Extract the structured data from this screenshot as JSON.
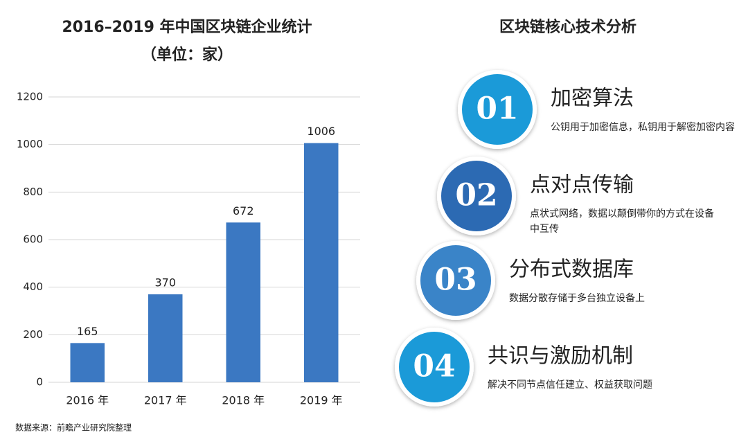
{
  "chart_data": {
    "type": "bar",
    "title": "2016–2019 年中国区块链企业统计",
    "subtitle": "（单位：家）",
    "categories": [
      "2016 年",
      "2017 年",
      "2018 年",
      "2019 年"
    ],
    "values": [
      165,
      370,
      672,
      1006
    ],
    "color": "#3b78c2",
    "ylim": [
      0,
      1200
    ],
    "yticks": [
      0,
      200,
      400,
      600,
      800,
      1000,
      1200
    ],
    "grid": true
  },
  "source": "数据来源：前瞻产业研究院整理",
  "panel": {
    "title": "区块链核心技术分析",
    "items": [
      {
        "number": "01",
        "title": "加密算法",
        "description": "公钥用于加密信息，私钥用于解密加密内容",
        "color": "#1b9ad8"
      },
      {
        "number": "02",
        "title": "点对点传输",
        "description": "点状式网络，数据以颠倒带你的方式在设备中互传",
        "color": "#2c6ab3"
      },
      {
        "number": "03",
        "title": "分布式数据库",
        "description": "数据分散存储于多台独立设备上",
        "color": "#3a84c8"
      },
      {
        "number": "04",
        "title": "共识与激励机制",
        "description": "解决不同节点信任建立、权益获取问题",
        "color": "#1b9ad8"
      }
    ]
  }
}
